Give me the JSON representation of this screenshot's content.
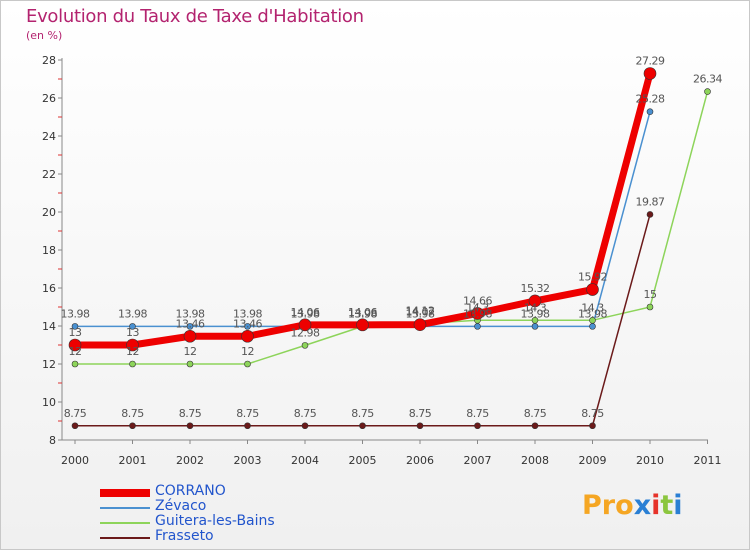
{
  "title": "Evolution du Taux de Taxe d'Habitation",
  "subtitle": "(en %)",
  "logo": "Proxiti",
  "chart_data": {
    "type": "line",
    "x": [
      "2000",
      "2001",
      "2002",
      "2003",
      "2004",
      "2005",
      "2006",
      "2007",
      "2008",
      "2009",
      "2010",
      "2011"
    ],
    "ylim": [
      8,
      28
    ],
    "yticks": [
      8,
      10,
      12,
      14,
      16,
      18,
      20,
      22,
      24,
      26,
      28
    ],
    "grid": false,
    "legend_position": "bottom-left",
    "series": [
      {
        "name": "Zévaco",
        "color": "#4a90d0",
        "values": [
          13.98,
          13.98,
          13.98,
          13.98,
          13.98,
          13.98,
          13.98,
          13.98,
          13.98,
          13.98,
          25.28,
          null
        ],
        "labels": [
          "13.98",
          "13.98",
          "13.98",
          "13.98",
          "13.98",
          "13.98",
          "13.98",
          "13.98",
          "13.98",
          "13.98",
          "25.28",
          ""
        ]
      },
      {
        "name": "Guitera-les-Bains",
        "color": "#8dd45a",
        "values": [
          12,
          12,
          12,
          12,
          12.98,
          13.98,
          14.12,
          14.3,
          14.3,
          14.3,
          15,
          26.34
        ],
        "labels": [
          "12",
          "12",
          "12",
          "12",
          "12.98",
          "13.98",
          "14.12",
          "14.3",
          "14.3",
          "14.3",
          "15",
          "26.34"
        ]
      },
      {
        "name": "Frasseto",
        "color": "#6b1a1a",
        "values": [
          8.75,
          8.75,
          8.75,
          8.75,
          8.75,
          8.75,
          8.75,
          8.75,
          8.75,
          8.75,
          19.87,
          null
        ],
        "labels": [
          "8.75",
          "8.75",
          "8.75",
          "8.75",
          "8.75",
          "8.75",
          "8.75",
          "8.75",
          "8.75",
          "8.75",
          "19.87",
          ""
        ]
      },
      {
        "name": "CORRANO",
        "color": "#ee0000",
        "values": [
          13,
          13,
          13.46,
          13.46,
          14.06,
          14.06,
          14.07,
          14.66,
          15.32,
          15.92,
          27.29,
          null
        ],
        "labels": [
          "13",
          "13",
          "13.46",
          "13.46",
          "14.06",
          "14.06",
          "14.07",
          "14.66",
          "15.32",
          "15.92",
          "27.29",
          ""
        ]
      }
    ],
    "legend": [
      {
        "name": "CORRANO",
        "color": "#ee0000"
      },
      {
        "name": "Zévaco",
        "color": "#4a90d0"
      },
      {
        "name": "Guitera-les-Bains",
        "color": "#8dd45a"
      },
      {
        "name": "Frasseto",
        "color": "#6b1a1a"
      }
    ]
  },
  "logo_colors": [
    "#f5a623",
    "#f5a623",
    "#f5a623",
    "#2a7fd4",
    "#e6332a",
    "#8cc63f",
    "#2a7fd4"
  ]
}
